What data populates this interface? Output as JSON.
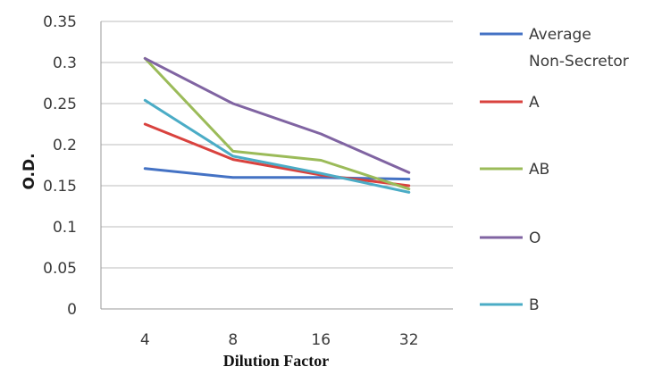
{
  "chart_data": {
    "type": "line",
    "xlabel": "Dilution Factor",
    "ylabel": "O.D.",
    "categories": [
      "4",
      "8",
      "16",
      "32"
    ],
    "ylim": [
      0,
      0.35
    ],
    "yticks": [
      "0",
      "0.05",
      "0.1",
      "0.15",
      "0.2",
      "0.25",
      "0.3",
      "0.35"
    ],
    "grid": true,
    "legend_position": "right",
    "series": [
      {
        "name": "Average Non-Secretor",
        "color": "#4472C4",
        "values": [
          0.171,
          0.16,
          0.16,
          0.158
        ]
      },
      {
        "name": "A",
        "color": "#D9423E",
        "values": [
          0.225,
          0.182,
          0.163,
          0.15
        ]
      },
      {
        "name": "AB",
        "color": "#9BBB59",
        "values": [
          0.305,
          0.192,
          0.181,
          0.146
        ]
      },
      {
        "name": "O",
        "color": "#8064A2",
        "values": [
          0.305,
          0.25,
          0.213,
          0.166
        ]
      },
      {
        "name": "B",
        "color": "#4BACC6",
        "values": [
          0.254,
          0.186,
          0.165,
          0.142
        ]
      }
    ]
  }
}
